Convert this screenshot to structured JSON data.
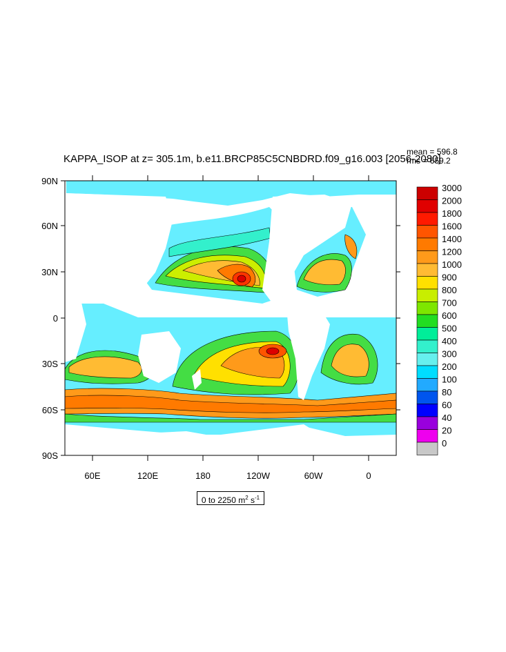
{
  "title": "KAPPA_ISOP at z= 305.1m, b.e11.BRCP85C5CNBDRD.f09_g16.003 [2056-2080]",
  "stats": {
    "mean": "mean = 596.8",
    "rms": "rms = 659.2"
  },
  "range_label": {
    "prefix": "0 to 2250 m",
    "exp1": "2",
    "unit2": " s",
    "exp2": "-1"
  },
  "map": {
    "lat_ticks": [
      "90N",
      "60N",
      "30N",
      "0",
      "30S",
      "60S",
      "90S"
    ],
    "lon_ticks": [
      "60E",
      "120E",
      "180",
      "120W",
      "60W",
      "0"
    ],
    "lon_range": [
      30,
      390
    ],
    "lat_range": [
      -90,
      90
    ]
  },
  "colorbar": {
    "labels": [
      "3000",
      "2000",
      "1800",
      "1600",
      "1400",
      "1200",
      "1000",
      "900",
      "800",
      "700",
      "600",
      "500",
      "400",
      "300",
      "200",
      "100",
      "80",
      "60",
      "40",
      "20",
      "0"
    ],
    "colors": [
      "#cc0000",
      "#e00000",
      "#ff1a00",
      "#ff5500",
      "#ff7a00",
      "#ff9a1a",
      "#ffbb33",
      "#ffe000",
      "#c8ee00",
      "#7ee600",
      "#22dd22",
      "#00ee99",
      "#33f0cc",
      "#66f0ee",
      "#00ddff",
      "#22aaff",
      "#0055ee",
      "#0000ff",
      "#9900dd",
      "#ee00ee",
      "#c8c8c8"
    ]
  }
}
